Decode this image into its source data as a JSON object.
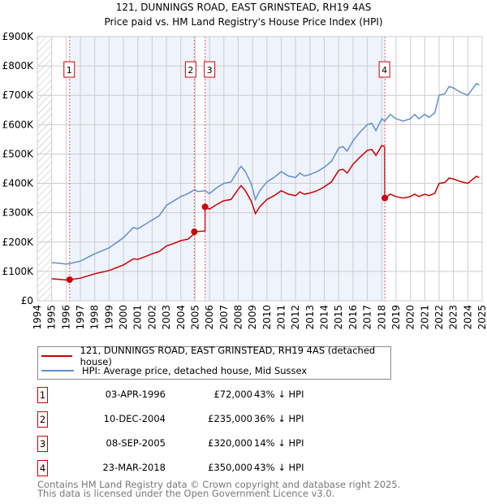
{
  "chart_data": {
    "type": "line",
    "title": "121, DUNNINGS ROAD, EAST GRINSTEAD, RH19 4AS",
    "subtitle": "Price paid vs. HM Land Registry's House Price Index (HPI)",
    "xlim": [
      1994,
      2025
    ],
    "ylim": [
      0,
      900000
    ],
    "x_ticks": [
      "1994",
      "1995",
      "1996",
      "1997",
      "1998",
      "1999",
      "2000",
      "2001",
      "2002",
      "2003",
      "2004",
      "2005",
      "2006",
      "2007",
      "2008",
      "2009",
      "2010",
      "2011",
      "2012",
      "2013",
      "2014",
      "2015",
      "2016",
      "2017",
      "2018",
      "2019",
      "2020",
      "2021",
      "2022",
      "2023",
      "2024",
      "2025"
    ],
    "y_ticks": [
      {
        "v": 0,
        "label": "£0"
      },
      {
        "v": 100000,
        "label": "£100K"
      },
      {
        "v": 200000,
        "label": "£200K"
      },
      {
        "v": 300000,
        "label": "£300K"
      },
      {
        "v": 400000,
        "label": "£400K"
      },
      {
        "v": 500000,
        "label": "£500K"
      },
      {
        "v": 600000,
        "label": "£600K"
      },
      {
        "v": 700000,
        "label": "£700K"
      },
      {
        "v": 800000,
        "label": "£800K"
      },
      {
        "v": 900000,
        "label": "£900K"
      }
    ],
    "grid": true,
    "colors": {
      "property": "#cc0000",
      "hpi": "#6090d0",
      "shade": "#eef3fc"
    },
    "series": [
      {
        "name": "121, DUNNINGS ROAD, EAST GRINSTEAD, RH19 4AS (detached house)",
        "unit": "K",
        "points": [
          [
            1995,
            75
          ],
          [
            1995.5,
            73
          ],
          [
            1996,
            71
          ],
          [
            1996.25,
            72
          ],
          [
            1997,
            77
          ],
          [
            1998,
            92
          ],
          [
            1999,
            103
          ],
          [
            2000,
            122
          ],
          [
            2000.7,
            143
          ],
          [
            2001,
            141
          ],
          [
            2001.5,
            150
          ],
          [
            2002,
            160
          ],
          [
            2002.5,
            168
          ],
          [
            2003,
            187
          ],
          [
            2003.5,
            195
          ],
          [
            2004,
            205
          ],
          [
            2004.5,
            210
          ],
          [
            2004.85,
            225
          ],
          [
            2004.94,
            235
          ],
          [
            2005.69,
            238
          ],
          [
            2005.69,
            320
          ],
          [
            2006,
            312
          ],
          [
            2006.5,
            328
          ],
          [
            2007,
            341
          ],
          [
            2007.5,
            345
          ],
          [
            2008,
            380
          ],
          [
            2008.2,
            392
          ],
          [
            2008.5,
            375
          ],
          [
            2008.9,
            340
          ],
          [
            2009.2,
            297
          ],
          [
            2009.5,
            320
          ],
          [
            2010,
            345
          ],
          [
            2010.5,
            358
          ],
          [
            2011,
            375
          ],
          [
            2011.5,
            363
          ],
          [
            2012,
            358
          ],
          [
            2012.3,
            371
          ],
          [
            2012.6,
            363
          ],
          [
            2013,
            367
          ],
          [
            2013.5,
            375
          ],
          [
            2014,
            388
          ],
          [
            2014.5,
            405
          ],
          [
            2015,
            444
          ],
          [
            2015.3,
            448
          ],
          [
            2015.6,
            435
          ],
          [
            2016,
            465
          ],
          [
            2016.5,
            490
          ],
          [
            2017,
            512
          ],
          [
            2017.3,
            516
          ],
          [
            2017.6,
            495
          ],
          [
            2018,
            529
          ],
          [
            2018.2,
            525
          ],
          [
            2018.22,
            350
          ],
          [
            2018.6,
            363
          ],
          [
            2019,
            355
          ],
          [
            2019.5,
            350
          ],
          [
            2020,
            355
          ],
          [
            2020.3,
            363
          ],
          [
            2020.6,
            355
          ],
          [
            2021,
            363
          ],
          [
            2021.3,
            358
          ],
          [
            2021.7,
            366
          ],
          [
            2022,
            400
          ],
          [
            2022.4,
            403
          ],
          [
            2022.7,
            418
          ],
          [
            2023,
            415
          ],
          [
            2023.5,
            406
          ],
          [
            2024,
            400
          ],
          [
            2024.6,
            424
          ],
          [
            2024.8,
            420
          ]
        ]
      },
      {
        "name": "HPI: Average price, detached house, Mid Sussex",
        "unit": "K",
        "points": [
          [
            1995,
            130
          ],
          [
            1995.5,
            128
          ],
          [
            1996,
            125
          ],
          [
            1996.25,
            127
          ],
          [
            1997,
            135
          ],
          [
            1998,
            160
          ],
          [
            1999,
            180
          ],
          [
            2000,
            215
          ],
          [
            2000.7,
            250
          ],
          [
            2001,
            245
          ],
          [
            2001.5,
            260
          ],
          [
            2002,
            275
          ],
          [
            2002.5,
            290
          ],
          [
            2003,
            325
          ],
          [
            2003.5,
            340
          ],
          [
            2004,
            355
          ],
          [
            2004.5,
            365
          ],
          [
            2004.94,
            378
          ],
          [
            2005.2,
            372
          ],
          [
            2005.69,
            375
          ],
          [
            2006,
            365
          ],
          [
            2006.5,
            385
          ],
          [
            2007,
            400
          ],
          [
            2007.5,
            405
          ],
          [
            2008,
            445
          ],
          [
            2008.2,
            458
          ],
          [
            2008.5,
            440
          ],
          [
            2008.9,
            400
          ],
          [
            2009.2,
            345
          ],
          [
            2009.5,
            375
          ],
          [
            2010,
            405
          ],
          [
            2010.5,
            420
          ],
          [
            2011,
            440
          ],
          [
            2011.5,
            425
          ],
          [
            2012,
            420
          ],
          [
            2012.3,
            435
          ],
          [
            2012.6,
            425
          ],
          [
            2013,
            430
          ],
          [
            2013.5,
            440
          ],
          [
            2014,
            455
          ],
          [
            2014.5,
            475
          ],
          [
            2015,
            520
          ],
          [
            2015.3,
            525
          ],
          [
            2015.6,
            510
          ],
          [
            2016,
            545
          ],
          [
            2016.5,
            575
          ],
          [
            2017,
            600
          ],
          [
            2017.3,
            605
          ],
          [
            2017.6,
            580
          ],
          [
            2018,
            620
          ],
          [
            2018.22,
            612
          ],
          [
            2018.6,
            635
          ],
          [
            2019,
            620
          ],
          [
            2019.5,
            612
          ],
          [
            2020,
            620
          ],
          [
            2020.3,
            635
          ],
          [
            2020.6,
            620
          ],
          [
            2021,
            635
          ],
          [
            2021.3,
            625
          ],
          [
            2021.7,
            640
          ],
          [
            2022,
            700
          ],
          [
            2022.4,
            705
          ],
          [
            2022.7,
            730
          ],
          [
            2023,
            725
          ],
          [
            2023.5,
            710
          ],
          [
            2024,
            700
          ],
          [
            2024.6,
            740
          ],
          [
            2024.8,
            735
          ]
        ]
      }
    ],
    "sales": [
      {
        "id": "1",
        "t": 1996.25,
        "price": 72000,
        "date": "03-APR-1996",
        "price_label": "£72,000",
        "hpi_diff": "43% ↓ HPI"
      },
      {
        "id": "2",
        "t": 2004.94,
        "price": 235000,
        "date": "10-DEC-2004",
        "price_label": "£235,000",
        "hpi_diff": "36% ↓ HPI"
      },
      {
        "id": "3",
        "t": 2005.69,
        "price": 320000,
        "date": "08-SEP-2005",
        "price_label": "£320,000",
        "hpi_diff": "14% ↓ HPI"
      },
      {
        "id": "4",
        "t": 2018.22,
        "price": 350000,
        "date": "23-MAR-2018",
        "price_label": "£350,000",
        "hpi_diff": "43% ↓ HPI"
      }
    ],
    "legend": {
      "placement": "bottom",
      "property": "121, DUNNINGS ROAD, EAST GRINSTEAD, RH19 4AS (detached house)",
      "hpi": "HPI: Average price, detached house, Mid Sussex"
    }
  },
  "footer": {
    "line1": "Contains HM Land Registry data © Crown copyright and database right 2025.",
    "line2": "This data is licensed under the Open Government Licence v3.0."
  }
}
